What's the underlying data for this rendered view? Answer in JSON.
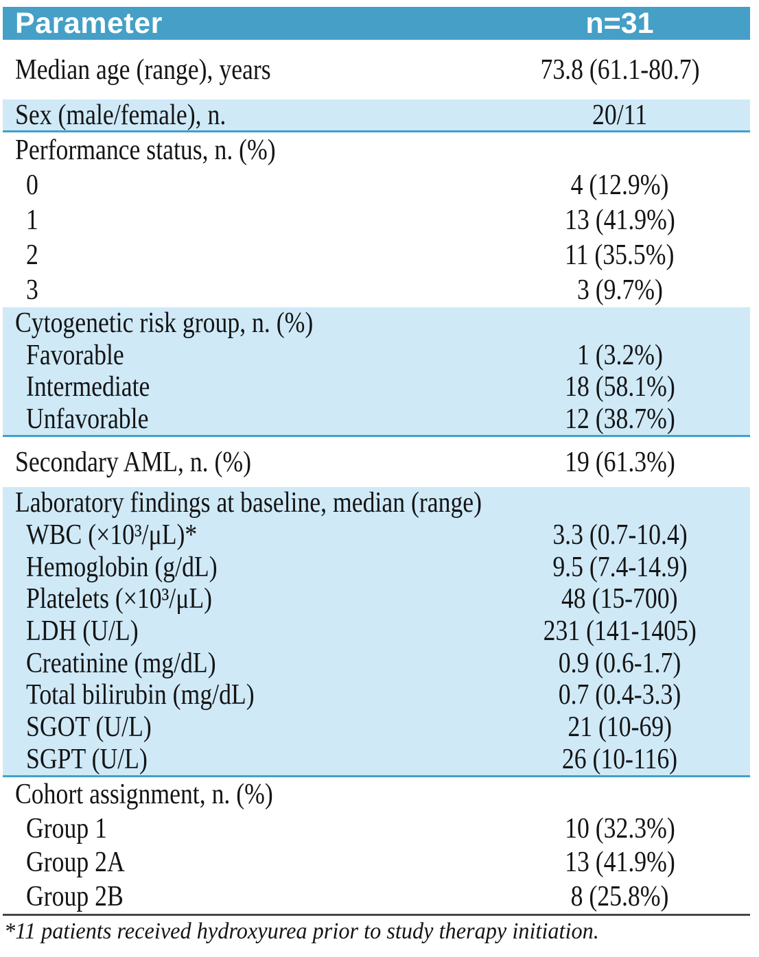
{
  "colors": {
    "header_bg": "#459fc6",
    "header_text": "#ffffff",
    "band_bg": "#cfe9f7",
    "separator": "#3da2c9",
    "rule": "#474747",
    "text": "#141414"
  },
  "table": {
    "header": {
      "parameter": "Parameter",
      "n": "n=31"
    },
    "sections": [
      {
        "name": "median-age",
        "rows": [
          {
            "label": "Median age (range), years",
            "value": "73.8 (61.1-80.7)"
          }
        ]
      },
      {
        "name": "sex",
        "rows": [
          {
            "label": "Sex (male/female), n.",
            "value": "20/11"
          }
        ]
      },
      {
        "name": "performance-status",
        "rows": [
          {
            "label": "Performance status, n. (%)",
            "value": ""
          },
          {
            "label": "0",
            "value": "4 (12.9%)",
            "indent": true
          },
          {
            "label": "1",
            "value": "13 (41.9%)",
            "indent": true
          },
          {
            "label": "2",
            "value": "11 (35.5%)",
            "indent": true
          },
          {
            "label": "3",
            "value": "3 (9.7%)",
            "indent": true
          }
        ]
      },
      {
        "name": "cytogenetic-risk",
        "rows": [
          {
            "label": "Cytogenetic risk group, n. (%)",
            "value": ""
          },
          {
            "label": "Favorable",
            "value": "1 (3.2%)",
            "indent": true
          },
          {
            "label": "Intermediate",
            "value": "18 (58.1%)",
            "indent": true
          },
          {
            "label": "Unfavorable",
            "value": "12 (38.7%)",
            "indent": true
          }
        ]
      },
      {
        "name": "secondary-aml",
        "rows": [
          {
            "label": "Secondary AML, n. (%)",
            "value": "19 (61.3%)"
          }
        ]
      },
      {
        "name": "laboratory-findings",
        "rows": [
          {
            "label": "Laboratory findings at baseline, median (range)",
            "value": ""
          },
          {
            "label": "WBC (×10³/μL)*",
            "value": "3.3 (0.7-10.4)",
            "indent": true
          },
          {
            "label": "Hemoglobin (g/dL)",
            "value": "9.5 (7.4-14.9)",
            "indent": true
          },
          {
            "label": "Platelets (×10³/μL)",
            "value": "48 (15-700)",
            "indent": true
          },
          {
            "label": "LDH (U/L)",
            "value": "231 (141-1405)",
            "indent": true
          },
          {
            "label": "Creatinine (mg/dL)",
            "value": "0.9 (0.6-1.7)",
            "indent": true
          },
          {
            "label": "Total bilirubin (mg/dL)",
            "value": "0.7 (0.4-3.3)",
            "indent": true
          },
          {
            "label": "SGOT (U/L)",
            "value": "21 (10-69)",
            "indent": true
          },
          {
            "label": "SGPT (U/L)",
            "value": "26 (10-116)",
            "indent": true
          }
        ]
      },
      {
        "name": "cohort-assignment",
        "rows": [
          {
            "label": "Cohort assignment, n. (%)",
            "value": ""
          },
          {
            "label": "Group 1",
            "value": "10 (32.3%)",
            "indent": true
          },
          {
            "label": "Group 2A",
            "value": "13 (41.9%)",
            "indent": true
          },
          {
            "label": "Group 2B",
            "value": "8 (25.8%)",
            "indent": true
          }
        ]
      }
    ],
    "footnote": "*11 patients received hydroxyurea prior to study therapy initiation."
  }
}
